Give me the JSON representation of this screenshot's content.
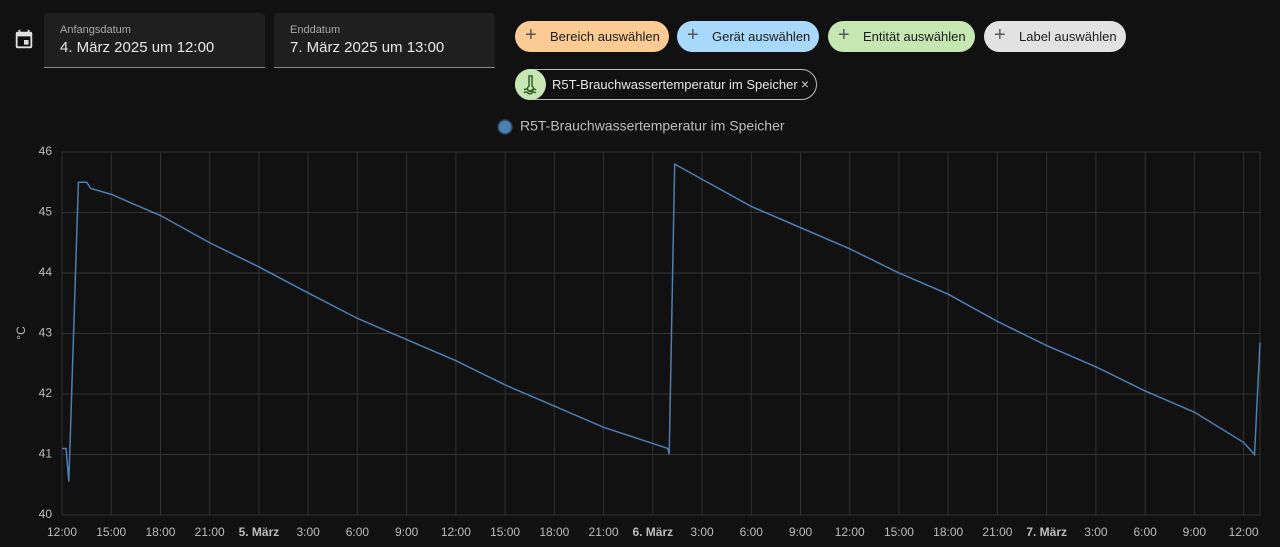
{
  "header": {
    "start_label": "Anfangsdatum",
    "start_value": "4. März 2025 um 12:00",
    "end_label": "Enddatum",
    "end_value": "7. März 2025 um 13:00",
    "chips": [
      "Bereich auswählen",
      "Gerät auswählen",
      "Entität auswählen",
      "Label auswählen"
    ],
    "selected_entity": "R5T-Brauchwassertemperatur im Speicher"
  },
  "chart_data": {
    "type": "line",
    "y_label": "°C",
    "x": [
      "2025-03-04T12:00",
      "2025-03-04T12:15",
      "2025-03-04T12:25",
      "2025-03-04T13:00",
      "2025-03-04T13:30",
      "2025-03-04T13:45",
      "2025-03-04T15:00",
      "2025-03-04T18:00",
      "2025-03-04T21:00",
      "2025-03-05T00:00",
      "2025-03-05T03:00",
      "2025-03-05T06:00",
      "2025-03-05T09:00",
      "2025-03-05T12:00",
      "2025-03-05T15:00",
      "2025-03-05T18:00",
      "2025-03-05T21:00",
      "2025-03-06T00:55",
      "2025-03-06T01:00",
      "2025-03-06T01:20",
      "2025-03-06T03:00",
      "2025-03-06T06:00",
      "2025-03-06T09:00",
      "2025-03-06T12:00",
      "2025-03-06T15:00",
      "2025-03-06T18:00",
      "2025-03-06T21:00",
      "2025-03-07T00:00",
      "2025-03-07T03:00",
      "2025-03-07T06:00",
      "2025-03-07T09:00",
      "2025-03-07T12:00",
      "2025-03-07T12:40",
      "2025-03-07T13:00"
    ],
    "series": [
      {
        "name": "R5T-Brauchwassertemperatur im Speicher",
        "color": "#4e7fb3",
        "values": [
          41.1,
          41.1,
          40.55,
          45.5,
          45.5,
          45.4,
          45.3,
          44.95,
          44.5,
          44.1,
          43.67,
          43.25,
          42.9,
          42.55,
          42.15,
          41.8,
          41.45,
          41.1,
          41.0,
          45.8,
          45.55,
          45.1,
          44.75,
          44.4,
          44.0,
          43.65,
          43.2,
          42.8,
          42.45,
          42.05,
          41.7,
          41.2,
          41.0,
          42.85
        ]
      }
    ],
    "xlim": [
      "2025-03-04T12:00",
      "2025-03-07T13:00"
    ],
    "xticks": [
      {
        "value": "2025-03-04T12:00",
        "label": "12:00"
      },
      {
        "value": "2025-03-04T15:00",
        "label": "15:00"
      },
      {
        "value": "2025-03-04T18:00",
        "label": "18:00"
      },
      {
        "value": "2025-03-04T21:00",
        "label": "21:00"
      },
      {
        "value": "2025-03-05T00:00",
        "label": "5. März"
      },
      {
        "value": "2025-03-05T03:00",
        "label": "3:00"
      },
      {
        "value": "2025-03-05T06:00",
        "label": "6:00"
      },
      {
        "value": "2025-03-05T09:00",
        "label": "9:00"
      },
      {
        "value": "2025-03-05T12:00",
        "label": "12:00"
      },
      {
        "value": "2025-03-05T15:00",
        "label": "15:00"
      },
      {
        "value": "2025-03-05T18:00",
        "label": "18:00"
      },
      {
        "value": "2025-03-05T21:00",
        "label": "21:00"
      },
      {
        "value": "2025-03-06T00:00",
        "label": "6. März"
      },
      {
        "value": "2025-03-06T03:00",
        "label": "3:00"
      },
      {
        "value": "2025-03-06T06:00",
        "label": "6:00"
      },
      {
        "value": "2025-03-06T09:00",
        "label": "9:00"
      },
      {
        "value": "2025-03-06T12:00",
        "label": "12:00"
      },
      {
        "value": "2025-03-06T15:00",
        "label": "15:00"
      },
      {
        "value": "2025-03-06T18:00",
        "label": "18:00"
      },
      {
        "value": "2025-03-06T21:00",
        "label": "21:00"
      },
      {
        "value": "2025-03-07T00:00",
        "label": "7. März"
      },
      {
        "value": "2025-03-07T03:00",
        "label": "3:00"
      },
      {
        "value": "2025-03-07T06:00",
        "label": "6:00"
      },
      {
        "value": "2025-03-07T09:00",
        "label": "9:00"
      },
      {
        "value": "2025-03-07T12:00",
        "label": "12:00"
      }
    ],
    "ylim": [
      40,
      46
    ],
    "yticks": [
      40,
      41,
      42,
      43,
      44,
      45,
      46
    ],
    "grid": true
  }
}
